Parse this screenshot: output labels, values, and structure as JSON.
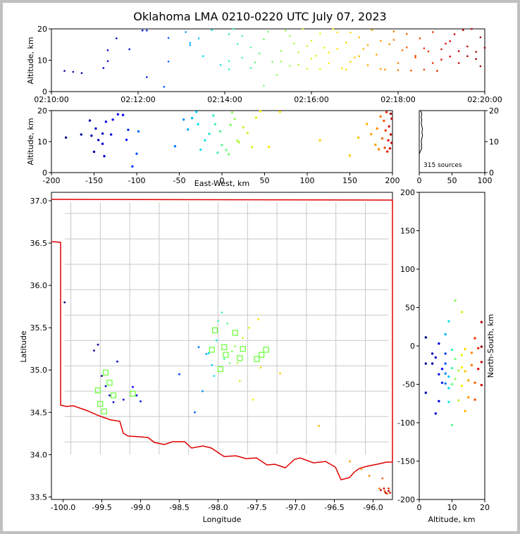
{
  "chart_data": [
    {
      "name": "time_altitude",
      "type": "scatter",
      "title": "Oklahoma LMA 0210-0220 UTC July 07, 2023",
      "ylabel": "Altitude, km",
      "xlabel": "",
      "x_tick_labels": [
        "02:10:00",
        "02:12:00",
        "02:14:00",
        "02:16:00",
        "02:18:00",
        "02:20:00"
      ],
      "x_range_minutes": [
        0,
        10
      ],
      "y_ticks": [
        0,
        10,
        20
      ],
      "ylim": [
        0,
        20
      ],
      "points": [
        [
          0.3,
          6.6
        ],
        [
          0.5,
          6.3
        ],
        [
          0.7,
          5.9
        ],
        [
          1.2,
          7.5
        ],
        [
          1.3,
          13.2
        ],
        [
          1.3,
          9.7
        ],
        [
          1.5,
          17
        ],
        [
          1.8,
          13.5
        ],
        [
          2.1,
          19.5
        ],
        [
          2.2,
          4.6
        ],
        [
          2.2,
          19.5
        ],
        [
          2.6,
          1.5
        ],
        [
          2.7,
          9.6
        ],
        [
          2.7,
          17.1
        ],
        [
          3.1,
          19
        ],
        [
          3.2,
          14.8
        ],
        [
          3.2,
          15.5
        ],
        [
          3.4,
          17
        ],
        [
          3.5,
          11.3
        ],
        [
          3.7,
          19.6
        ],
        [
          3.9,
          8.5
        ],
        [
          4.1,
          7.1
        ],
        [
          4.1,
          9.7
        ],
        [
          4.1,
          18.3
        ],
        [
          4.2,
          20
        ],
        [
          4.3,
          15.2
        ],
        [
          4.4,
          10.8
        ],
        [
          4.4,
          17.7
        ],
        [
          4.6,
          14.1
        ],
        [
          4.6,
          7.5
        ],
        [
          4.7,
          9.3
        ],
        [
          4.8,
          12.2
        ],
        [
          4.9,
          1.9
        ],
        [
          5.0,
          19.1
        ],
        [
          5.2,
          5.3
        ],
        [
          5.3,
          9.6
        ],
        [
          5.4,
          19.5
        ],
        [
          5.5,
          8.2
        ],
        [
          5.6,
          15.4
        ],
        [
          5.7,
          12.5
        ],
        [
          5.8,
          20
        ],
        [
          5.9,
          7.3
        ],
        [
          6.0,
          16.2
        ],
        [
          6.1,
          11.4
        ],
        [
          6.2,
          18.5
        ],
        [
          6.3,
          14.0
        ],
        [
          6.4,
          9.0
        ],
        [
          6.5,
          20
        ],
        [
          6.6,
          13.6
        ],
        [
          6.7,
          7.4
        ],
        [
          6.8,
          15.6
        ],
        [
          6.9,
          18.8
        ],
        [
          7.0,
          10.9
        ],
        [
          7.1,
          17.3
        ],
        [
          7.2,
          13.6
        ],
        [
          7.3,
          8.4
        ],
        [
          7.4,
          19.6
        ],
        [
          7.5,
          11.8
        ],
        [
          7.6,
          16.2
        ],
        [
          7.7,
          7.0
        ],
        [
          7.8,
          15.1
        ],
        [
          7.9,
          19.2
        ],
        [
          8.0,
          9.1
        ],
        [
          8.1,
          13.2
        ],
        [
          8.2,
          18.4
        ],
        [
          8.3,
          6.7
        ],
        [
          8.4,
          11.4
        ],
        [
          8.5,
          17.0
        ],
        [
          8.6,
          7.0
        ],
        [
          8.7,
          12.8
        ],
        [
          8.8,
          19.0
        ],
        [
          8.9,
          6.6
        ],
        [
          9.0,
          10.2
        ],
        [
          9.1,
          15.3
        ],
        [
          9.2,
          11.2
        ],
        [
          9.3,
          18.3
        ],
        [
          9.4,
          9.1
        ],
        [
          9.5,
          19.6
        ],
        [
          9.6,
          14.4
        ],
        [
          9.7,
          20
        ],
        [
          9.8,
          10.4
        ],
        [
          9.9,
          8.1
        ],
        [
          9.9,
          17.3
        ],
        [
          10.0,
          14.0
        ],
        [
          9.8,
          12.7
        ],
        [
          9.6,
          11.3
        ],
        [
          9.4,
          12.9
        ],
        [
          9.2,
          16.1
        ],
        [
          9.0,
          13.5
        ],
        [
          8.8,
          9.1
        ],
        [
          8.6,
          13.8
        ],
        [
          8.4,
          10.9
        ],
        [
          8.2,
          14.1
        ],
        [
          8.0,
          6.8
        ],
        [
          7.9,
          16.5
        ],
        [
          7.6,
          7.2
        ],
        [
          7.3,
          14.8
        ],
        [
          7.1,
          11.3
        ],
        [
          6.9,
          9.5
        ],
        [
          6.8,
          7.0
        ],
        [
          6.6,
          18.9
        ],
        [
          6.4,
          12.5
        ],
        [
          6.2,
          7.2
        ],
        [
          6.0,
          10.5
        ],
        [
          5.9,
          14.5
        ],
        [
          5.7,
          8.6
        ],
        [
          5.5,
          17.8
        ],
        [
          5.3,
          13.0
        ],
        [
          5.1,
          9.5
        ],
        [
          4.9,
          16.7
        ]
      ]
    },
    {
      "name": "ew_altitude",
      "type": "scatter",
      "xlabel": "East-West, km",
      "ylabel": "Altitude, km",
      "x_ticks": [
        -200,
        -150,
        -100,
        -50,
        0,
        50,
        100,
        150,
        200
      ],
      "xlim": [
        -200,
        200
      ],
      "y_ticks": [
        0,
        10,
        20
      ],
      "ylim": [
        0,
        20
      ],
      "points": [
        [
          -183,
          11.3
        ],
        [
          -165,
          12.3
        ],
        [
          -155,
          16.8
        ],
        [
          -153,
          11.9
        ],
        [
          -150,
          6.7
        ],
        [
          -148,
          14.2
        ],
        [
          -145,
          10.5
        ],
        [
          -140,
          12.6
        ],
        [
          -140,
          9.3
        ],
        [
          -138,
          5.3
        ],
        [
          -136,
          16.4
        ],
        [
          -130,
          12.3
        ],
        [
          -128,
          17.1
        ],
        [
          -122,
          18.8
        ],
        [
          -116,
          18.6
        ],
        [
          -112,
          10.6
        ],
        [
          -110,
          13.8
        ],
        [
          -105,
          2.0
        ],
        [
          -100,
          6.1
        ],
        [
          -98,
          13.3
        ],
        [
          -55,
          8.5
        ],
        [
          -45,
          17.1
        ],
        [
          -40,
          13.9
        ],
        [
          -35,
          17.6
        ],
        [
          -30,
          19.6
        ],
        [
          -28,
          15.6
        ],
        [
          -25,
          7.4
        ],
        [
          -20,
          10.4
        ],
        [
          -15,
          12.5
        ],
        [
          -10,
          18.4
        ],
        [
          -8,
          15.6
        ],
        [
          -5,
          6.4
        ],
        [
          -2,
          13.3
        ],
        [
          0,
          8.9
        ],
        [
          5,
          7.3
        ],
        [
          8,
          5.9
        ],
        [
          10,
          15.4
        ],
        [
          12,
          19.4
        ],
        [
          15,
          17.3
        ],
        [
          18,
          10.3
        ],
        [
          20,
          9.8
        ],
        [
          25,
          14.6
        ],
        [
          30,
          12.8
        ],
        [
          35,
          8.2
        ],
        [
          40,
          17.7
        ],
        [
          45,
          19.8
        ],
        [
          55,
          8.3
        ],
        [
          68,
          19.6
        ],
        [
          115,
          10.4
        ],
        [
          150,
          5.5
        ],
        [
          160,
          11.3
        ],
        [
          170,
          15.7
        ],
        [
          175,
          12.4
        ],
        [
          180,
          9.0
        ],
        [
          182,
          14.2
        ],
        [
          184,
          7.5
        ],
        [
          186,
          18.1
        ],
        [
          188,
          11.0
        ],
        [
          190,
          16.7
        ],
        [
          191,
          8.0
        ],
        [
          192,
          13.6
        ],
        [
          193,
          19.5
        ],
        [
          194,
          6.8
        ],
        [
          195,
          10.4
        ],
        [
          196,
          14.9
        ],
        [
          197,
          7.8
        ],
        [
          198,
          12.3
        ],
        [
          199,
          17.4
        ],
        [
          199,
          9.6
        ],
        [
          198,
          19.0
        ]
      ]
    },
    {
      "name": "altitude_histogram",
      "type": "line",
      "x_ticks": [
        0,
        50,
        100
      ],
      "xlim": [
        0,
        100
      ],
      "y_ticks": [
        0,
        10,
        20
      ],
      "ylim": [
        0,
        20
      ],
      "annotation": "315 sources",
      "profile": [
        [
          0,
          6
        ],
        [
          1,
          6.5
        ],
        [
          2,
          7
        ],
        [
          3,
          7.5
        ],
        [
          4,
          8
        ],
        [
          3,
          8.5
        ],
        [
          4,
          9
        ],
        [
          3,
          10
        ],
        [
          4,
          11
        ],
        [
          5,
          12
        ],
        [
          4,
          13
        ],
        [
          5,
          14
        ],
        [
          4,
          15
        ],
        [
          3,
          16
        ],
        [
          4,
          17
        ],
        [
          3,
          18
        ],
        [
          4,
          19
        ],
        [
          2,
          20
        ]
      ]
    },
    {
      "name": "plan_view",
      "type": "scatter",
      "xlabel": "Longitude",
      "ylabel": "Latitude",
      "x_tick_labels": [
        "-100.0",
        "-99.5",
        "-99.0",
        "-98.5",
        "-98.0",
        "-97.5",
        "-97.0",
        "-96.5",
        "-96.0"
      ],
      "x_ticks": [
        -100.0,
        -99.5,
        -99.0,
        -98.5,
        -98.0,
        -97.5,
        -97.0,
        -96.5,
        -96.0
      ],
      "xlim": [
        -100.15,
        -95.75
      ],
      "y_tick_labels": [
        "33.5",
        "34.0",
        "34.5",
        "35.0",
        "35.5",
        "36.0",
        "36.5",
        "37.0"
      ],
      "y_ticks": [
        33.5,
        34.0,
        34.5,
        35.0,
        35.5,
        36.0,
        36.5,
        37.0
      ],
      "ylim": [
        33.47,
        37.1
      ],
      "stations": [
        [
          -99.45,
          34.97
        ],
        [
          -99.52,
          34.6
        ],
        [
          -99.47,
          34.51
        ],
        [
          -99.4,
          34.85
        ],
        [
          -99.35,
          34.7
        ],
        [
          -99.55,
          34.76
        ],
        [
          -99.1,
          34.72
        ],
        [
          -98.04,
          35.47
        ],
        [
          -97.92,
          35.27
        ],
        [
          -97.97,
          35.01
        ],
        [
          -98.08,
          35.24
        ],
        [
          -97.9,
          35.18
        ],
        [
          -97.72,
          35.14
        ],
        [
          -97.78,
          35.44
        ],
        [
          -97.68,
          35.25
        ],
        [
          -97.5,
          35.13
        ],
        [
          -97.44,
          35.18
        ],
        [
          -97.38,
          35.24
        ]
      ],
      "points": [
        [
          -99.98,
          35.8
        ],
        [
          -99.6,
          35.23
        ],
        [
          -99.55,
          35.3
        ],
        [
          -99.5,
          34.93
        ],
        [
          -99.45,
          34.81
        ],
        [
          -99.4,
          34.7
        ],
        [
          -99.35,
          34.62
        ],
        [
          -99.3,
          35.1
        ],
        [
          -99.22,
          34.65
        ],
        [
          -99.1,
          34.8
        ],
        [
          -99.05,
          34.7
        ],
        [
          -99.0,
          34.63
        ],
        [
          -98.5,
          34.95
        ],
        [
          -98.3,
          34.5
        ],
        [
          -98.25,
          35.27
        ],
        [
          -98.2,
          34.75
        ],
        [
          -98.15,
          35.19
        ],
        [
          -98.12,
          35.2
        ],
        [
          -98.08,
          35.06
        ],
        [
          -98.05,
          34.93
        ],
        [
          -98.02,
          35.35
        ],
        [
          -98.0,
          35.58
        ],
        [
          -97.95,
          35.68
        ],
        [
          -97.92,
          35.13
        ],
        [
          -97.88,
          35.55
        ],
        [
          -97.85,
          35.08
        ],
        [
          -97.82,
          35.22
        ],
        [
          -97.78,
          35.28
        ],
        [
          -97.75,
          35.08
        ],
        [
          -97.72,
          34.87
        ],
        [
          -97.68,
          35.38
        ],
        [
          -97.6,
          35.5
        ],
        [
          -97.55,
          34.65
        ],
        [
          -97.48,
          35.6
        ],
        [
          -97.45,
          35.03
        ],
        [
          -97.2,
          34.96
        ],
        [
          -96.7,
          34.34
        ],
        [
          -96.3,
          33.92
        ],
        [
          -96.15,
          33.83
        ],
        [
          -96.05,
          33.75
        ],
        [
          -95.92,
          33.6
        ],
        [
          -95.88,
          33.72
        ],
        [
          -95.85,
          33.57
        ],
        [
          -95.82,
          33.54
        ],
        [
          -95.8,
          33.6
        ],
        [
          -95.78,
          33.55
        ],
        [
          -95.86,
          33.6
        ],
        [
          -95.9,
          33.58
        ],
        [
          -95.84,
          33.55
        ],
        [
          -95.8,
          33.57
        ]
      ]
    },
    {
      "name": "altitude_ns",
      "type": "scatter",
      "xlabel": "Altitude, km",
      "ylabel": "North-South, km",
      "x_ticks": [
        0,
        10,
        20
      ],
      "xlim": [
        0,
        20
      ],
      "y_ticks": [
        -200,
        -150,
        -100,
        -50,
        0,
        50,
        100,
        150,
        200
      ],
      "ylim": [
        -200,
        200
      ],
      "points": [
        [
          2,
          11
        ],
        [
          2,
          -23
        ],
        [
          2,
          -61
        ],
        [
          4,
          -23
        ],
        [
          4,
          -10
        ],
        [
          5,
          -88
        ],
        [
          5,
          -15
        ],
        [
          6,
          3
        ],
        [
          6,
          -37
        ],
        [
          6,
          -72
        ],
        [
          7,
          -30
        ],
        [
          7,
          -48
        ],
        [
          8,
          -10
        ],
        [
          8,
          -23
        ],
        [
          8,
          -49
        ],
        [
          8,
          -36
        ],
        [
          8,
          15
        ],
        [
          9,
          -40
        ],
        [
          9,
          -55
        ],
        [
          9,
          32
        ],
        [
          9,
          -73
        ],
        [
          10,
          -5
        ],
        [
          10,
          -29
        ],
        [
          10,
          -103
        ],
        [
          10,
          -50
        ],
        [
          11,
          -17
        ],
        [
          11,
          59
        ],
        [
          11,
          -43
        ],
        [
          12,
          -32
        ],
        [
          12,
          -71
        ],
        [
          13,
          44
        ],
        [
          13,
          -12
        ],
        [
          13,
          -28
        ],
        [
          13,
          -52
        ],
        [
          14,
          -4
        ],
        [
          14,
          -33
        ],
        [
          14,
          -85
        ],
        [
          15,
          -45
        ],
        [
          15,
          -67
        ],
        [
          16,
          -9
        ],
        [
          16,
          -25
        ],
        [
          17,
          -48
        ],
        [
          17,
          -70
        ],
        [
          17,
          10
        ],
        [
          18,
          -3
        ],
        [
          18,
          -30
        ],
        [
          19,
          -51
        ],
        [
          19,
          -21
        ],
        [
          19,
          31
        ],
        [
          19,
          -1
        ]
      ]
    }
  ]
}
